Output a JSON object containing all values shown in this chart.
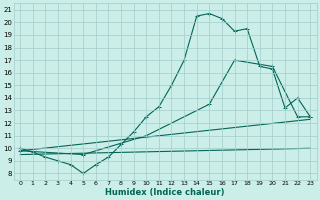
{
  "xlabel": "Humidex (Indice chaleur)",
  "xlim": [
    -0.5,
    23.5
  ],
  "ylim": [
    7.5,
    21.5
  ],
  "xticks": [
    0,
    1,
    2,
    3,
    4,
    5,
    6,
    7,
    8,
    9,
    10,
    11,
    12,
    13,
    14,
    15,
    16,
    17,
    18,
    19,
    20,
    21,
    22,
    23
  ],
  "yticks": [
    8,
    9,
    10,
    11,
    12,
    13,
    14,
    15,
    16,
    17,
    18,
    19,
    20,
    21
  ],
  "bg_color": "#cceee8",
  "grid_color": "#a0cccc",
  "line_color": "#006655",
  "curve1_x": [
    0,
    1,
    2,
    3,
    4,
    5,
    6,
    7,
    8,
    9,
    10,
    11,
    12,
    13,
    14,
    15,
    16,
    17,
    18,
    19,
    20,
    21,
    22,
    23
  ],
  "curve1_y": [
    10.0,
    9.7,
    9.3,
    9.0,
    8.7,
    8.0,
    8.7,
    9.3,
    10.3,
    11.3,
    12.5,
    13.3,
    15.0,
    17.0,
    20.5,
    20.7,
    20.3,
    19.3,
    19.5,
    16.5,
    16.3,
    13.2,
    14.0,
    12.5
  ],
  "curve2_x": [
    0,
    5,
    10,
    15,
    17,
    20,
    22,
    23
  ],
  "curve2_y": [
    9.8,
    9.5,
    11.0,
    13.5,
    17.0,
    16.5,
    12.5,
    12.5
  ],
  "curve3_x": [
    0,
    23
  ],
  "curve3_y": [
    9.8,
    12.3
  ],
  "curve4_x": [
    0,
    23
  ],
  "curve4_y": [
    9.5,
    10.0
  ]
}
